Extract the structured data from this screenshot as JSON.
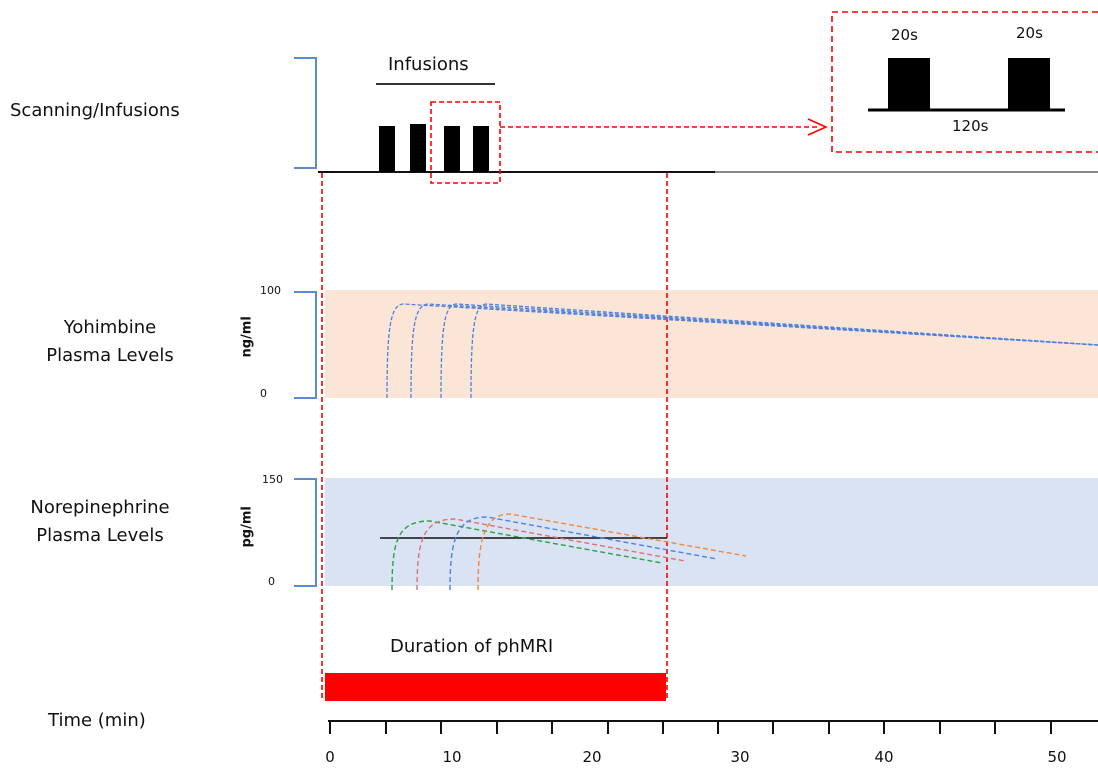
{
  "labels": {
    "scanning": "Scanning/Infusions",
    "yohimbine": [
      "Yohimbine",
      "Plasma Levels"
    ],
    "norepinephrine": [
      "Norepinephrine",
      "Plasma Levels"
    ],
    "time": "Time (min)",
    "infusions": "Infusions",
    "duration": "Duration of phMRI"
  },
  "inset": {
    "pulse_left": "20s",
    "pulse_right": "20s",
    "interval": "120s"
  },
  "yohimbine_axis": {
    "unit": "ng/ml",
    "max": "100",
    "min": "0"
  },
  "norepinephrine_axis": {
    "unit": "pg/ml",
    "max": "150",
    "min": "0"
  },
  "time_axis": {
    "ticks": [
      "0",
      "10",
      "20",
      "30",
      "40",
      "50"
    ]
  },
  "colors": {
    "red": "#ff0000",
    "yoh_band": "#fbe5d6",
    "ne_band": "#dae3f3",
    "bracket": "#5b8bd0",
    "blue": "#4f81e0",
    "green": "#2f9e44",
    "pink": "#e07070",
    "orange": "#f0883e"
  }
}
